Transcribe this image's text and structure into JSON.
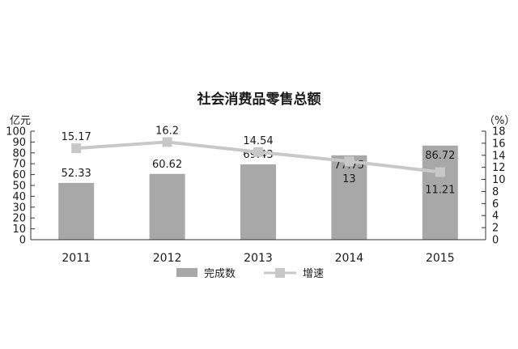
{
  "chart_data": {
    "type": "bar+line",
    "title": "社会消费品零售总额",
    "categories": [
      "2011",
      "2012",
      "2013",
      "2014",
      "2015"
    ],
    "y_left": {
      "unit": "亿元",
      "ylim": [
        0,
        100
      ],
      "ticks": [
        "0",
        "10",
        "20",
        "30",
        "40",
        "50",
        "60",
        "70",
        "80",
        "90",
        "100"
      ]
    },
    "y_right": {
      "unit": "（%）",
      "ylim": [
        0,
        18
      ],
      "ticks": [
        "0",
        "2",
        "4",
        "6",
        "8",
        "10",
        "12",
        "14",
        "16",
        "18"
      ]
    },
    "series": [
      {
        "name": "完成数",
        "kind": "bar",
        "axis": "left",
        "color": "#a8a8a8",
        "values": [
          52.33,
          60.62,
          69.43,
          77.75,
          86.72
        ],
        "labels": [
          "52.33",
          "60.62",
          "69.43",
          "77.75",
          "86.72"
        ]
      },
      {
        "name": "增速",
        "kind": "line",
        "axis": "right",
        "color": "#c8c8c8",
        "values": [
          15.17,
          16.2,
          14.54,
          13,
          11.21
        ],
        "labels": [
          "15.17",
          "16.2",
          "14.54",
          "13",
          "11.21"
        ]
      }
    ],
    "legend": "bottom",
    "grid": false
  }
}
